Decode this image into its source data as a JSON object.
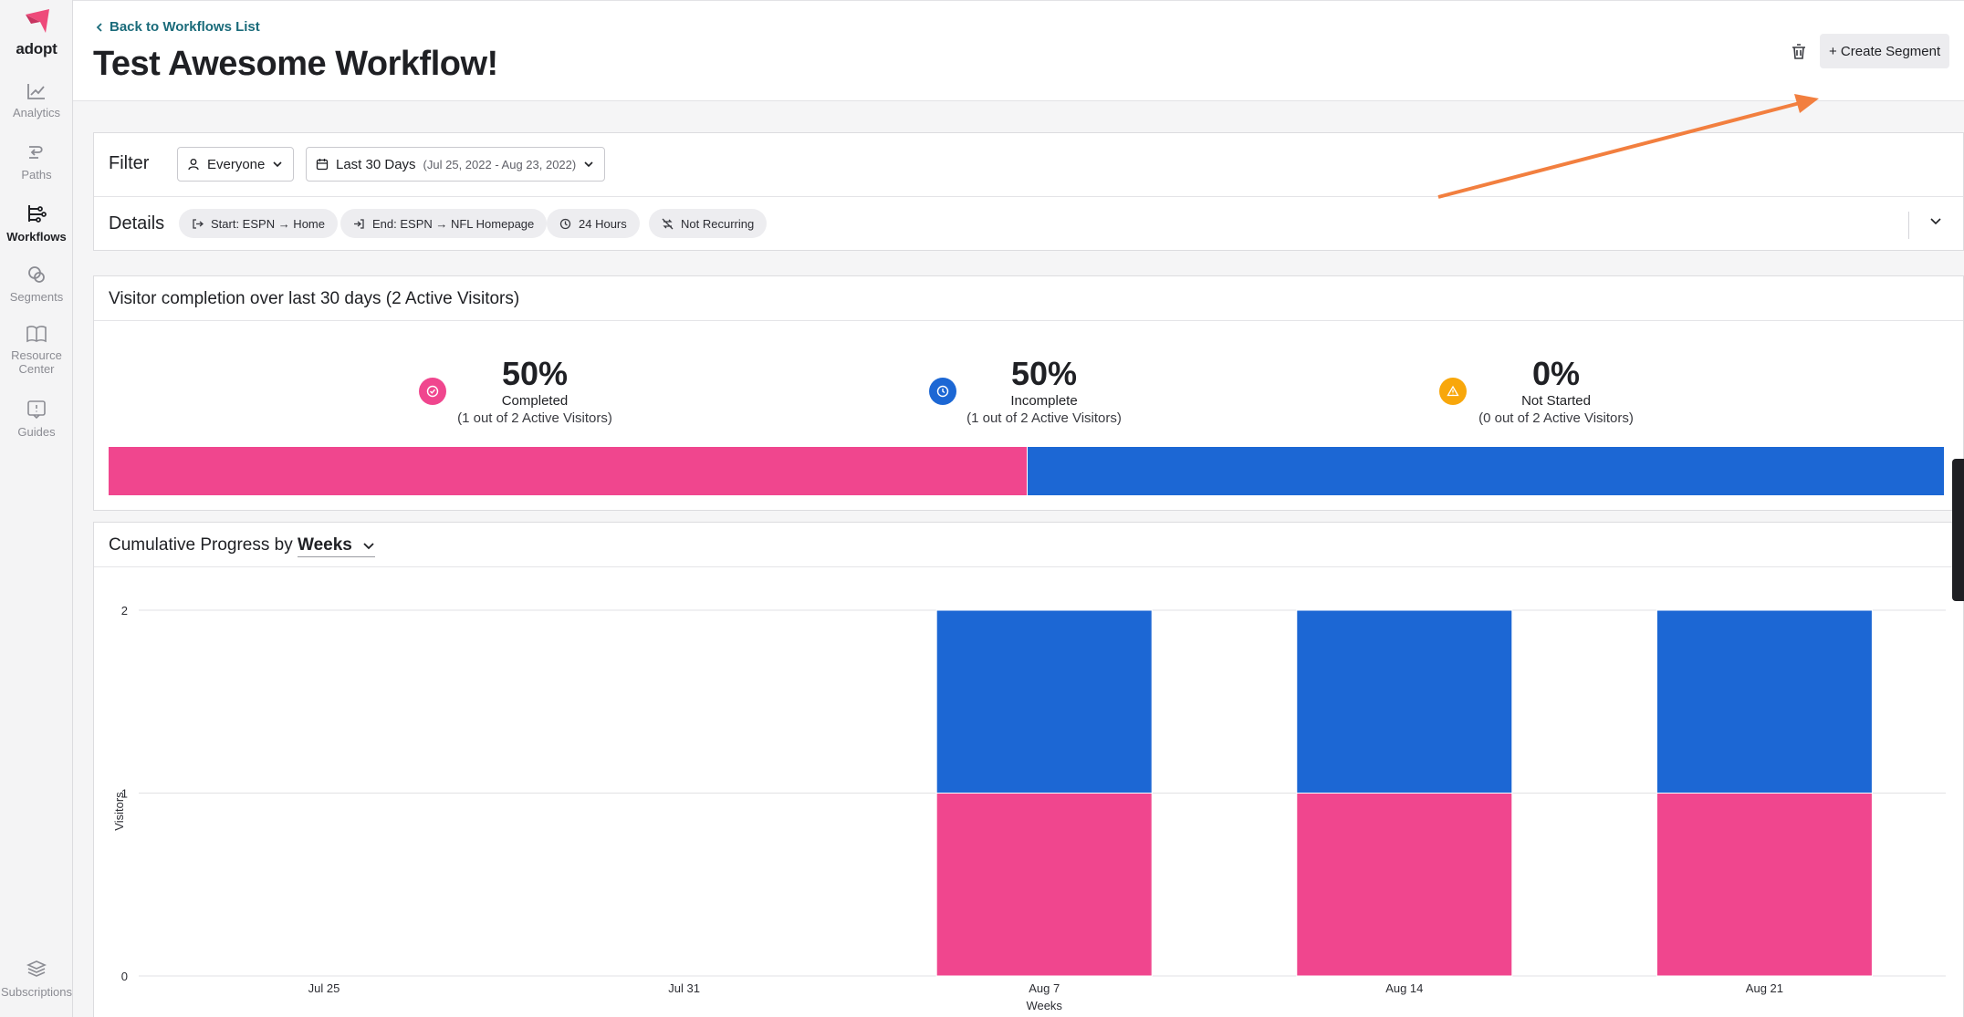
{
  "app": {
    "brand": "adopt",
    "accent_color": "#ee4a7a"
  },
  "sidebar": {
    "items": [
      {
        "label": "Analytics",
        "icon": "analytics-icon"
      },
      {
        "label": "Paths",
        "icon": "paths-icon"
      },
      {
        "label": "Workflows",
        "icon": "workflows-icon",
        "active": true
      },
      {
        "label": "Segments",
        "icon": "segments-icon"
      },
      {
        "label": "Resource Center",
        "icon": "book-icon"
      },
      {
        "label": "Guides",
        "icon": "guides-icon"
      }
    ],
    "bottom": {
      "label": "Subscriptions",
      "icon": "subscriptions-icon"
    }
  },
  "header": {
    "back_link": "Back to Workflows List",
    "title": "Test Awesome Workflow!",
    "create_button": "+ Create Segment"
  },
  "filter": {
    "label": "Filter",
    "audience": "Everyone",
    "date_range": "Last 30 Days",
    "date_detail": "(Jul 25, 2022 - Aug 23, 2022)"
  },
  "details": {
    "label": "Details",
    "chips": [
      {
        "text": "Start: ESPN → Home",
        "icon": "start-icon"
      },
      {
        "text": "End: ESPN → NFL Homepage",
        "icon": "end-icon"
      },
      {
        "text": "24 Hours",
        "icon": "clock-icon"
      },
      {
        "text": "Not Recurring",
        "icon": "not-recurring-icon"
      }
    ]
  },
  "completion": {
    "title": "Visitor completion over last 30 days (2 Active Visitors)",
    "stats": [
      {
        "pct": "50%",
        "label": "Completed",
        "sub": "(1 out of 2 Active Visitors)",
        "color": "#f0468e",
        "fraction": 0.5
      },
      {
        "pct": "50%",
        "label": "Incomplete",
        "sub": "(1 out of 2 Active Visitors)",
        "color": "#1c67d4",
        "fraction": 0.5
      },
      {
        "pct": "0%",
        "label": "Not Started",
        "sub": "(0 out of 2 Active Visitors)",
        "color": "#f8a70b",
        "fraction": 0.0
      }
    ]
  },
  "progress": {
    "title": "Cumulative Progress by",
    "granularity": "Weeks"
  },
  "chart_data": {
    "type": "bar",
    "stacked": true,
    "categories": [
      "Jul 25",
      "Jul 31",
      "Aug 7",
      "Aug 14",
      "Aug 21"
    ],
    "series": [
      {
        "name": "Completed",
        "values": [
          0,
          0,
          1,
          1,
          1
        ],
        "color": "#f0468e"
      },
      {
        "name": "Incomplete",
        "values": [
          0,
          0,
          1,
          1,
          1
        ],
        "color": "#1c67d4"
      }
    ],
    "xlabel": "Weeks",
    "ylabel": "Visitors",
    "ylim": [
      0,
      2
    ],
    "yticks": [
      0,
      1,
      2
    ]
  }
}
